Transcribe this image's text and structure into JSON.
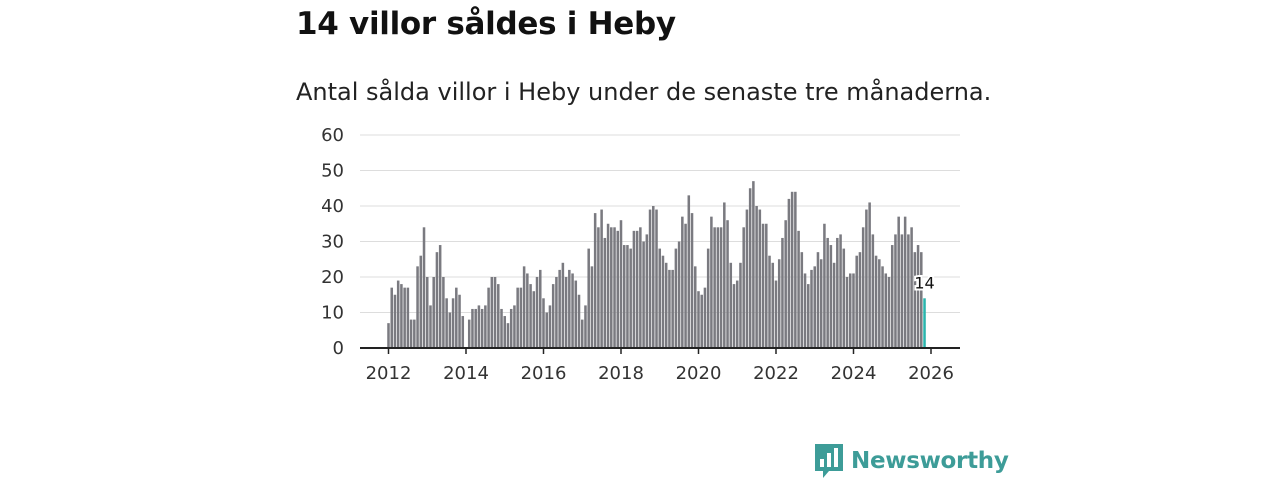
{
  "title": "14 villor såldes i Heby",
  "subtitle": "Antal sålda villor i Heby under de senaste tre månaderna.",
  "brand": "Newsworthy",
  "colors": {
    "bar": "#7a7a80",
    "highlight": "#2ab5ad",
    "grid": "#dddddd",
    "axis": "#222222",
    "brand": "#3d9c98"
  },
  "chart_data": {
    "type": "bar",
    "title": "14 villor såldes i Heby",
    "xlabel": "",
    "ylabel": "",
    "ylim": [
      0,
      60
    ],
    "yticks": [
      0,
      10,
      20,
      30,
      40,
      50,
      60
    ],
    "xticks": [
      2012,
      2014,
      2016,
      2018,
      2020,
      2022,
      2024,
      2026
    ],
    "x_start": 2012.0,
    "x_step": 0.08333,
    "highlight_label": "14",
    "values": [
      7,
      17,
      15,
      19,
      18,
      17,
      17,
      8,
      8,
      23,
      26,
      34,
      20,
      12,
      20,
      27,
      29,
      20,
      14,
      10,
      14,
      17,
      15,
      9,
      0,
      8,
      11,
      11,
      12,
      11,
      12,
      17,
      20,
      20,
      18,
      11,
      9,
      7,
      11,
      12,
      17,
      17,
      23,
      21,
      18,
      16,
      20,
      22,
      14,
      10,
      12,
      18,
      20,
      22,
      24,
      20,
      22,
      21,
      19,
      15,
      8,
      12,
      28,
      23,
      38,
      34,
      39,
      31,
      35,
      34,
      34,
      33,
      36,
      29,
      29,
      28,
      33,
      33,
      34,
      30,
      32,
      39,
      40,
      39,
      28,
      26,
      24,
      22,
      22,
      28,
      30,
      37,
      35,
      43,
      38,
      23,
      16,
      15,
      17,
      28,
      37,
      34,
      34,
      34,
      41,
      36,
      24,
      18,
      19,
      24,
      34,
      39,
      45,
      47,
      40,
      39,
      35,
      35,
      26,
      24,
      19,
      25,
      31,
      36,
      42,
      44,
      44,
      33,
      27,
      21,
      18,
      22,
      23,
      27,
      25,
      35,
      31,
      29,
      24,
      31,
      32,
      28,
      20,
      21,
      21,
      26,
      27,
      34,
      39,
      41,
      32,
      26,
      25,
      23,
      21,
      20,
      29,
      32,
      37,
      32,
      37,
      32,
      34,
      27,
      29,
      27,
      14
    ]
  }
}
